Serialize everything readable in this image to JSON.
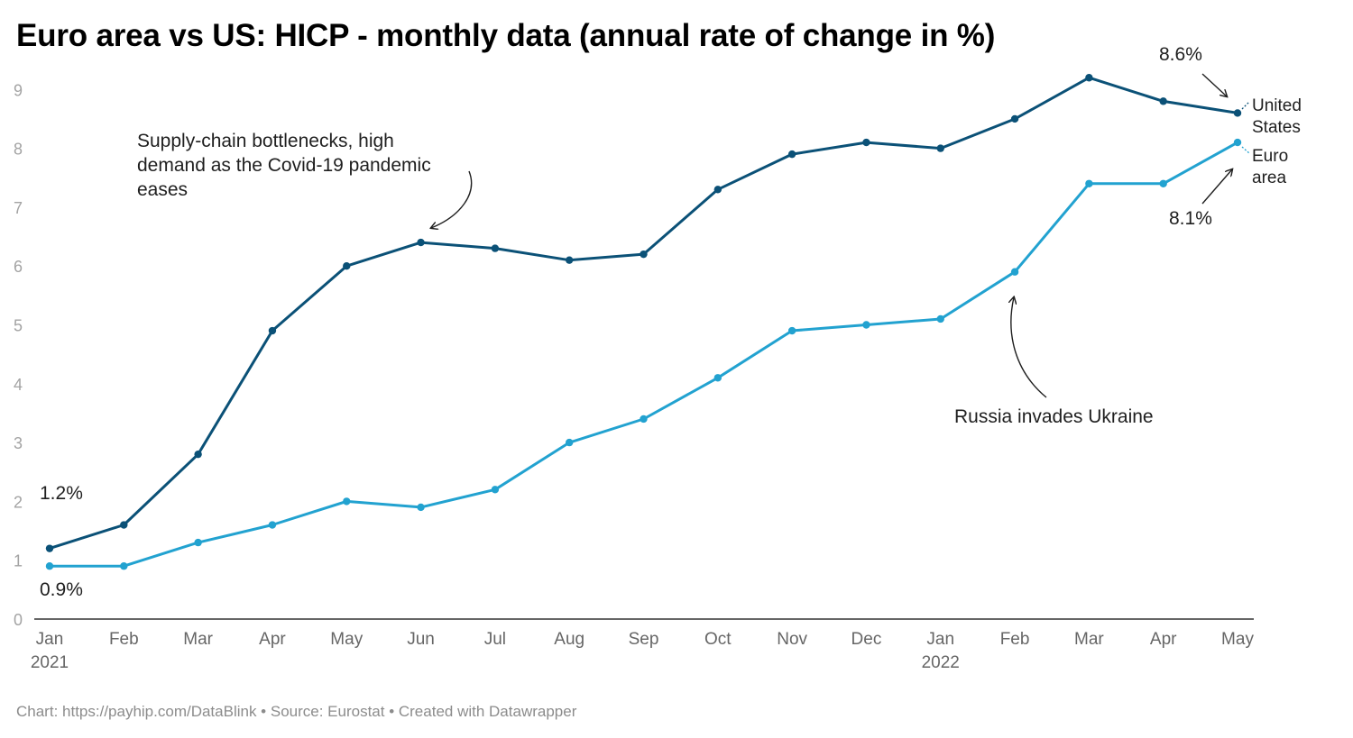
{
  "title": "Euro area vs US: HICP - monthly data (annual rate of change in %)",
  "footer": "Chart: https://payhip.com/DataBlink • Source: Eurostat • Created with Datawrapper",
  "chart_data": {
    "type": "line",
    "categories": [
      "Jan 2021",
      "Feb 2021",
      "Mar 2021",
      "Apr 2021",
      "May 2021",
      "Jun 2021",
      "Jul 2021",
      "Aug 2021",
      "Sep 2021",
      "Oct 2021",
      "Nov 2021",
      "Dec 2021",
      "Jan 2022",
      "Feb 2022",
      "Mar 2022",
      "Apr 2022",
      "May 2022"
    ],
    "x_tick_labels": [
      {
        "month": "Jan",
        "year": "2021"
      },
      {
        "month": "Feb",
        "year": ""
      },
      {
        "month": "Mar",
        "year": ""
      },
      {
        "month": "Apr",
        "year": ""
      },
      {
        "month": "May",
        "year": ""
      },
      {
        "month": "Jun",
        "year": ""
      },
      {
        "month": "Jul",
        "year": ""
      },
      {
        "month": "Aug",
        "year": ""
      },
      {
        "month": "Sep",
        "year": ""
      },
      {
        "month": "Oct",
        "year": ""
      },
      {
        "month": "Nov",
        "year": ""
      },
      {
        "month": "Dec",
        "year": ""
      },
      {
        "month": "Jan",
        "year": "2022"
      },
      {
        "month": "Feb",
        "year": ""
      },
      {
        "month": "Mar",
        "year": ""
      },
      {
        "month": "Apr",
        "year": ""
      },
      {
        "month": "May",
        "year": ""
      }
    ],
    "y_ticks": [
      "0",
      "1",
      "2",
      "3",
      "4",
      "5",
      "6",
      "7",
      "8",
      "9"
    ],
    "ylim": [
      0,
      9.5
    ],
    "grid": false,
    "series": [
      {
        "name": "United States",
        "label_lines": [
          "United",
          "States"
        ],
        "color": "#0b5177",
        "values": [
          1.2,
          1.6,
          2.8,
          4.9,
          6.0,
          6.4,
          6.3,
          6.1,
          6.2,
          7.3,
          7.9,
          8.1,
          8.0,
          8.5,
          9.2,
          8.8,
          8.6
        ]
      },
      {
        "name": "Euro area",
        "label_lines": [
          "Euro",
          "area"
        ],
        "color": "#22a2d0",
        "values": [
          0.9,
          0.9,
          1.3,
          1.6,
          2.0,
          1.9,
          2.2,
          3.0,
          3.4,
          4.1,
          4.9,
          5.0,
          5.1,
          5.9,
          7.4,
          7.4,
          8.1
        ]
      }
    ],
    "annotations": {
      "us_start": "1.2%",
      "ea_start": "0.9%",
      "us_end": "8.6%",
      "ea_end": "8.1%",
      "supply_chain": [
        "Supply-chain bottlenecks, high",
        "demand as the Covid-19 pandemic",
        "eases"
      ],
      "russia": "Russia invades Ukraine"
    }
  }
}
